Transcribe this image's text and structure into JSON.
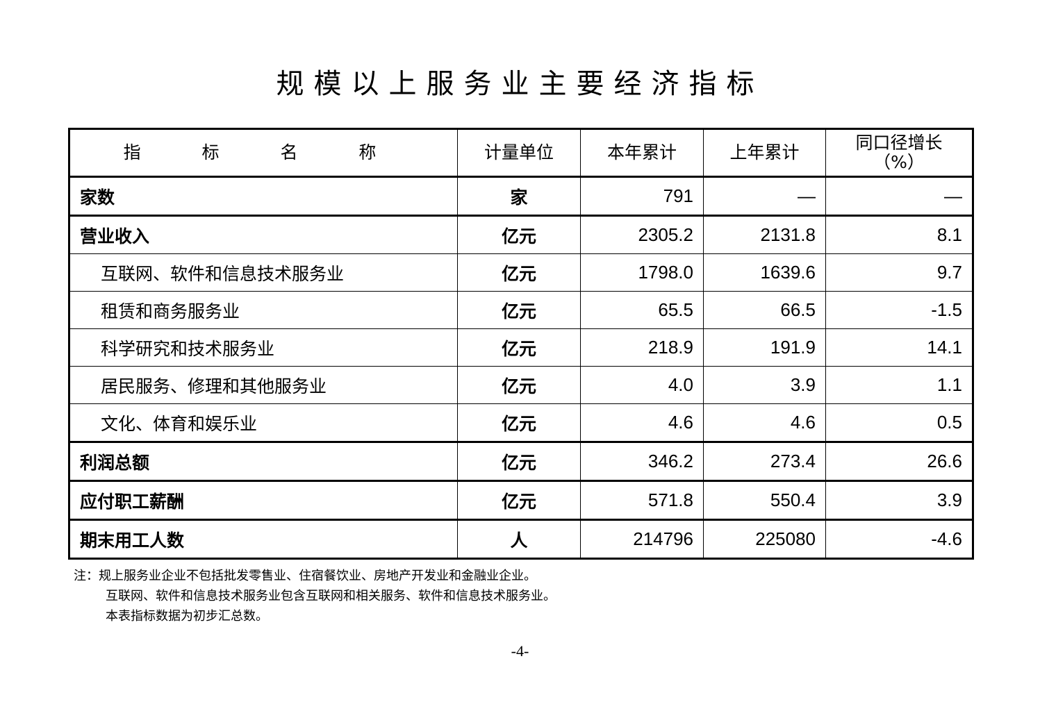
{
  "title": "规模以上服务业主要经济指标",
  "table": {
    "headers": [
      "指 标 名 称",
      "计量单位",
      "本年累计",
      "上年累计",
      "同口径增长",
      "（%）"
    ],
    "rows": [
      {
        "name": "家数",
        "unit": "家",
        "current": "791",
        "previous": "—",
        "growth": "—"
      },
      {
        "name": "营业收入",
        "unit": "亿元",
        "current": "2305.2",
        "previous": "2131.8",
        "growth": "8.1"
      },
      {
        "name": "互联网、软件和信息技术服务业",
        "unit": "亿元",
        "current": "1798.0",
        "previous": "1639.6",
        "growth": "9.7"
      },
      {
        "name": "租赁和商务服务业",
        "unit": "亿元",
        "current": "65.5",
        "previous": "66.5",
        "growth": "-1.5"
      },
      {
        "name": "科学研究和技术服务业",
        "unit": "亿元",
        "current": "218.9",
        "previous": "191.9",
        "growth": "14.1"
      },
      {
        "name": "居民服务、修理和其他服务业",
        "unit": "亿元",
        "current": "4.0",
        "previous": "3.9",
        "growth": "1.1"
      },
      {
        "name": "文化、体育和娱乐业",
        "unit": "亿元",
        "current": "4.6",
        "previous": "4.6",
        "growth": "0.5"
      },
      {
        "name": "利润总额",
        "unit": "亿元",
        "current": "346.2",
        "previous": "273.4",
        "growth": "26.6"
      },
      {
        "name": "应付职工薪酬",
        "unit": "亿元",
        "current": "571.8",
        "previous": "550.4",
        "growth": "3.9"
      },
      {
        "name": "期末用工人数",
        "unit": "人",
        "current": "214796",
        "previous": "225080",
        "growth": "-4.6"
      }
    ]
  },
  "notes": [
    "注：规上服务业企业不包括批发零售业、住宿餐饮业、房地产开发业和金融业企业。",
    "互联网、软件和信息技术服务业包含互联网和相关服务、软件和信息技术服务业。",
    "本表指标数据为初步汇总数。"
  ],
  "page_number": "-4-"
}
